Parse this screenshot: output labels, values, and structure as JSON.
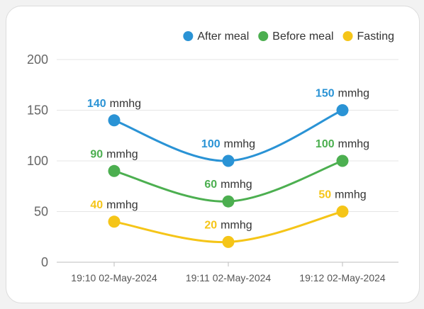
{
  "chart_data": {
    "type": "line",
    "title": "",
    "xlabel": "",
    "ylabel": "",
    "ylim": [
      0,
      200
    ],
    "yticks": [
      0,
      50,
      100,
      150,
      200
    ],
    "categories": [
      "19:10 02-May-2024",
      "19:11 02-May-2024",
      "19:12 02-May-2024"
    ],
    "unit": "mmhg",
    "grid": true,
    "legend_position": "top-right",
    "series": [
      {
        "name": "After meal",
        "color": "#2a93d5",
        "values": [
          140,
          100,
          150
        ]
      },
      {
        "name": "Before meal",
        "color": "#4caf50",
        "values": [
          90,
          60,
          100
        ]
      },
      {
        "name": "Fasting",
        "color": "#f5c518",
        "values": [
          40,
          20,
          50
        ]
      }
    ]
  }
}
